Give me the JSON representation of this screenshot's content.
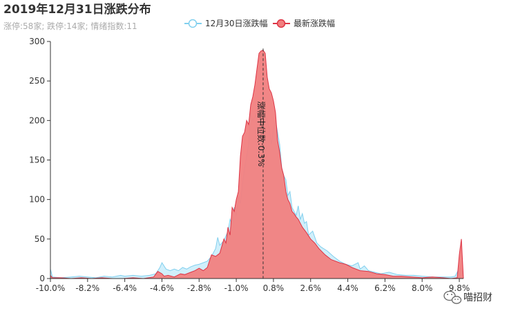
{
  "chart_data": {
    "type": "area",
    "title": "2019年12月31日涨跌分布",
    "subtitle": "涨停:58家; 跌停:14家; 情绪指数:11",
    "xlabel": "",
    "ylabel": "",
    "xlim": [
      -10.0,
      10.0
    ],
    "ylim": [
      0,
      300
    ],
    "x_tick_labels": [
      "-10.0%",
      "-8.2%",
      "-6.4%",
      "-4.6%",
      "-2.8%",
      "-1.0%",
      "0.8%",
      "2.6%",
      "4.4%",
      "6.2%",
      "8.0%",
      "9.8%"
    ],
    "x_tick_values": [
      -10.0,
      -8.2,
      -6.4,
      -4.6,
      -2.8,
      -1.0,
      0.8,
      2.6,
      4.4,
      6.2,
      8.0,
      9.8
    ],
    "y_ticks": [
      0,
      50,
      100,
      150,
      200,
      250,
      300
    ],
    "legend_position": "top",
    "median": {
      "value": 0.3,
      "label": "涨幅中位数:0.3%"
    },
    "series": [
      {
        "name": "12月30日涨跌幅",
        "color": "#80cfee",
        "fill": "#cdeefb",
        "points": [
          [
            -10.0,
            12
          ],
          [
            -9.9,
            2
          ],
          [
            -9.5,
            1
          ],
          [
            -9.0,
            2
          ],
          [
            -8.6,
            3
          ],
          [
            -8.2,
            2
          ],
          [
            -7.8,
            1
          ],
          [
            -7.4,
            3
          ],
          [
            -7.0,
            2
          ],
          [
            -6.6,
            4
          ],
          [
            -6.4,
            3
          ],
          [
            -6.0,
            4
          ],
          [
            -5.6,
            3
          ],
          [
            -5.2,
            4
          ],
          [
            -4.9,
            6
          ],
          [
            -4.7,
            14
          ],
          [
            -4.6,
            20
          ],
          [
            -4.4,
            12
          ],
          [
            -4.2,
            10
          ],
          [
            -4.0,
            12
          ],
          [
            -3.8,
            10
          ],
          [
            -3.6,
            14
          ],
          [
            -3.4,
            12
          ],
          [
            -3.2,
            15
          ],
          [
            -3.0,
            17
          ],
          [
            -2.8,
            18
          ],
          [
            -2.6,
            20
          ],
          [
            -2.4,
            22
          ],
          [
            -2.2,
            28
          ],
          [
            -2.0,
            38
          ],
          [
            -1.9,
            52
          ],
          [
            -1.8,
            42
          ],
          [
            -1.6,
            48
          ],
          [
            -1.4,
            60
          ],
          [
            -1.3,
            75
          ],
          [
            -1.2,
            68
          ],
          [
            -1.1,
            90
          ],
          [
            -1.0,
            80
          ],
          [
            -0.9,
            105
          ],
          [
            -0.8,
            95
          ],
          [
            -0.7,
            120
          ],
          [
            -0.6,
            140
          ],
          [
            -0.5,
            155
          ],
          [
            -0.4,
            170
          ],
          [
            -0.3,
            210
          ],
          [
            -0.2,
            200
          ],
          [
            -0.1,
            205
          ],
          [
            0.0,
            210
          ],
          [
            0.1,
            222
          ],
          [
            0.2,
            210
          ],
          [
            0.3,
            215
          ],
          [
            0.4,
            212
          ],
          [
            0.5,
            200
          ],
          [
            0.6,
            190
          ],
          [
            0.7,
            170
          ],
          [
            0.8,
            190
          ],
          [
            0.9,
            200
          ],
          [
            1.0,
            185
          ],
          [
            1.1,
            170
          ],
          [
            1.2,
            140
          ],
          [
            1.3,
            130
          ],
          [
            1.4,
            125
          ],
          [
            1.5,
            105
          ],
          [
            1.6,
            110
          ],
          [
            1.7,
            90
          ],
          [
            1.8,
            85
          ],
          [
            1.9,
            80
          ],
          [
            2.0,
            92
          ],
          [
            2.1,
            75
          ],
          [
            2.2,
            82
          ],
          [
            2.3,
            70
          ],
          [
            2.4,
            72
          ],
          [
            2.5,
            55
          ],
          [
            2.7,
            60
          ],
          [
            2.9,
            45
          ],
          [
            3.1,
            40
          ],
          [
            3.4,
            35
          ],
          [
            3.7,
            28
          ],
          [
            4.0,
            22
          ],
          [
            4.3,
            18
          ],
          [
            4.6,
            16
          ],
          [
            4.9,
            20
          ],
          [
            5.0,
            12
          ],
          [
            5.2,
            16
          ],
          [
            5.4,
            10
          ],
          [
            5.7,
            8
          ],
          [
            6.0,
            6
          ],
          [
            6.4,
            8
          ],
          [
            6.8,
            5
          ],
          [
            7.2,
            4
          ],
          [
            7.6,
            4
          ],
          [
            8.0,
            3
          ],
          [
            8.5,
            2
          ],
          [
            9.0,
            2
          ],
          [
            9.4,
            2
          ],
          [
            9.6,
            3
          ],
          [
            9.7,
            8
          ],
          [
            9.8,
            14
          ],
          [
            9.9,
            12
          ],
          [
            10.0,
            0
          ]
        ]
      },
      {
        "name": "最新涨跌幅",
        "color": "#dd3344",
        "fill": "#f17f7f",
        "points": [
          [
            -10.0,
            4
          ],
          [
            -9.9,
            1
          ],
          [
            -9.5,
            1
          ],
          [
            -9.0,
            0
          ],
          [
            -8.5,
            1
          ],
          [
            -8.0,
            0
          ],
          [
            -7.5,
            1
          ],
          [
            -7.0,
            0
          ],
          [
            -6.5,
            0
          ],
          [
            -6.0,
            1
          ],
          [
            -5.5,
            0
          ],
          [
            -5.0,
            2
          ],
          [
            -4.8,
            9
          ],
          [
            -4.6,
            6
          ],
          [
            -4.5,
            3
          ],
          [
            -4.3,
            4
          ],
          [
            -4.0,
            2
          ],
          [
            -3.7,
            6
          ],
          [
            -3.5,
            5
          ],
          [
            -3.2,
            8
          ],
          [
            -3.0,
            10
          ],
          [
            -2.8,
            13
          ],
          [
            -2.6,
            10
          ],
          [
            -2.4,
            14
          ],
          [
            -2.2,
            30
          ],
          [
            -2.0,
            28
          ],
          [
            -1.8,
            32
          ],
          [
            -1.6,
            50
          ],
          [
            -1.5,
            45
          ],
          [
            -1.4,
            65
          ],
          [
            -1.3,
            55
          ],
          [
            -1.2,
            90
          ],
          [
            -1.1,
            85
          ],
          [
            -1.0,
            100
          ],
          [
            -0.9,
            110
          ],
          [
            -0.8,
            155
          ],
          [
            -0.7,
            180
          ],
          [
            -0.6,
            185
          ],
          [
            -0.5,
            200
          ],
          [
            -0.4,
            195
          ],
          [
            -0.3,
            220
          ],
          [
            -0.2,
            230
          ],
          [
            -0.1,
            245
          ],
          [
            0.0,
            265
          ],
          [
            0.1,
            285
          ],
          [
            0.2,
            288
          ],
          [
            0.3,
            289
          ],
          [
            0.4,
            285
          ],
          [
            0.5,
            255
          ],
          [
            0.6,
            240
          ],
          [
            0.7,
            235
          ],
          [
            0.8,
            225
          ],
          [
            0.9,
            210
          ],
          [
            1.0,
            175
          ],
          [
            1.1,
            160
          ],
          [
            1.2,
            140
          ],
          [
            1.3,
            130
          ],
          [
            1.4,
            110
          ],
          [
            1.5,
            100
          ],
          [
            1.6,
            95
          ],
          [
            1.7,
            85
          ],
          [
            1.8,
            82
          ],
          [
            1.9,
            78
          ],
          [
            2.0,
            75
          ],
          [
            2.2,
            65
          ],
          [
            2.4,
            58
          ],
          [
            2.6,
            50
          ],
          [
            2.8,
            45
          ],
          [
            3.0,
            38
          ],
          [
            3.3,
            30
          ],
          [
            3.6,
            24
          ],
          [
            4.0,
            20
          ],
          [
            4.3,
            18
          ],
          [
            4.6,
            14
          ],
          [
            5.0,
            10
          ],
          [
            5.4,
            9
          ],
          [
            5.8,
            6
          ],
          [
            6.2,
            5
          ],
          [
            6.6,
            3
          ],
          [
            7.0,
            3
          ],
          [
            7.5,
            2
          ],
          [
            8.0,
            1
          ],
          [
            8.5,
            2
          ],
          [
            9.0,
            1
          ],
          [
            9.4,
            0
          ],
          [
            9.7,
            1
          ],
          [
            9.8,
            30
          ],
          [
            9.9,
            50
          ],
          [
            10.0,
            0
          ]
        ]
      }
    ]
  },
  "watermark": {
    "text": "喵招财"
  }
}
